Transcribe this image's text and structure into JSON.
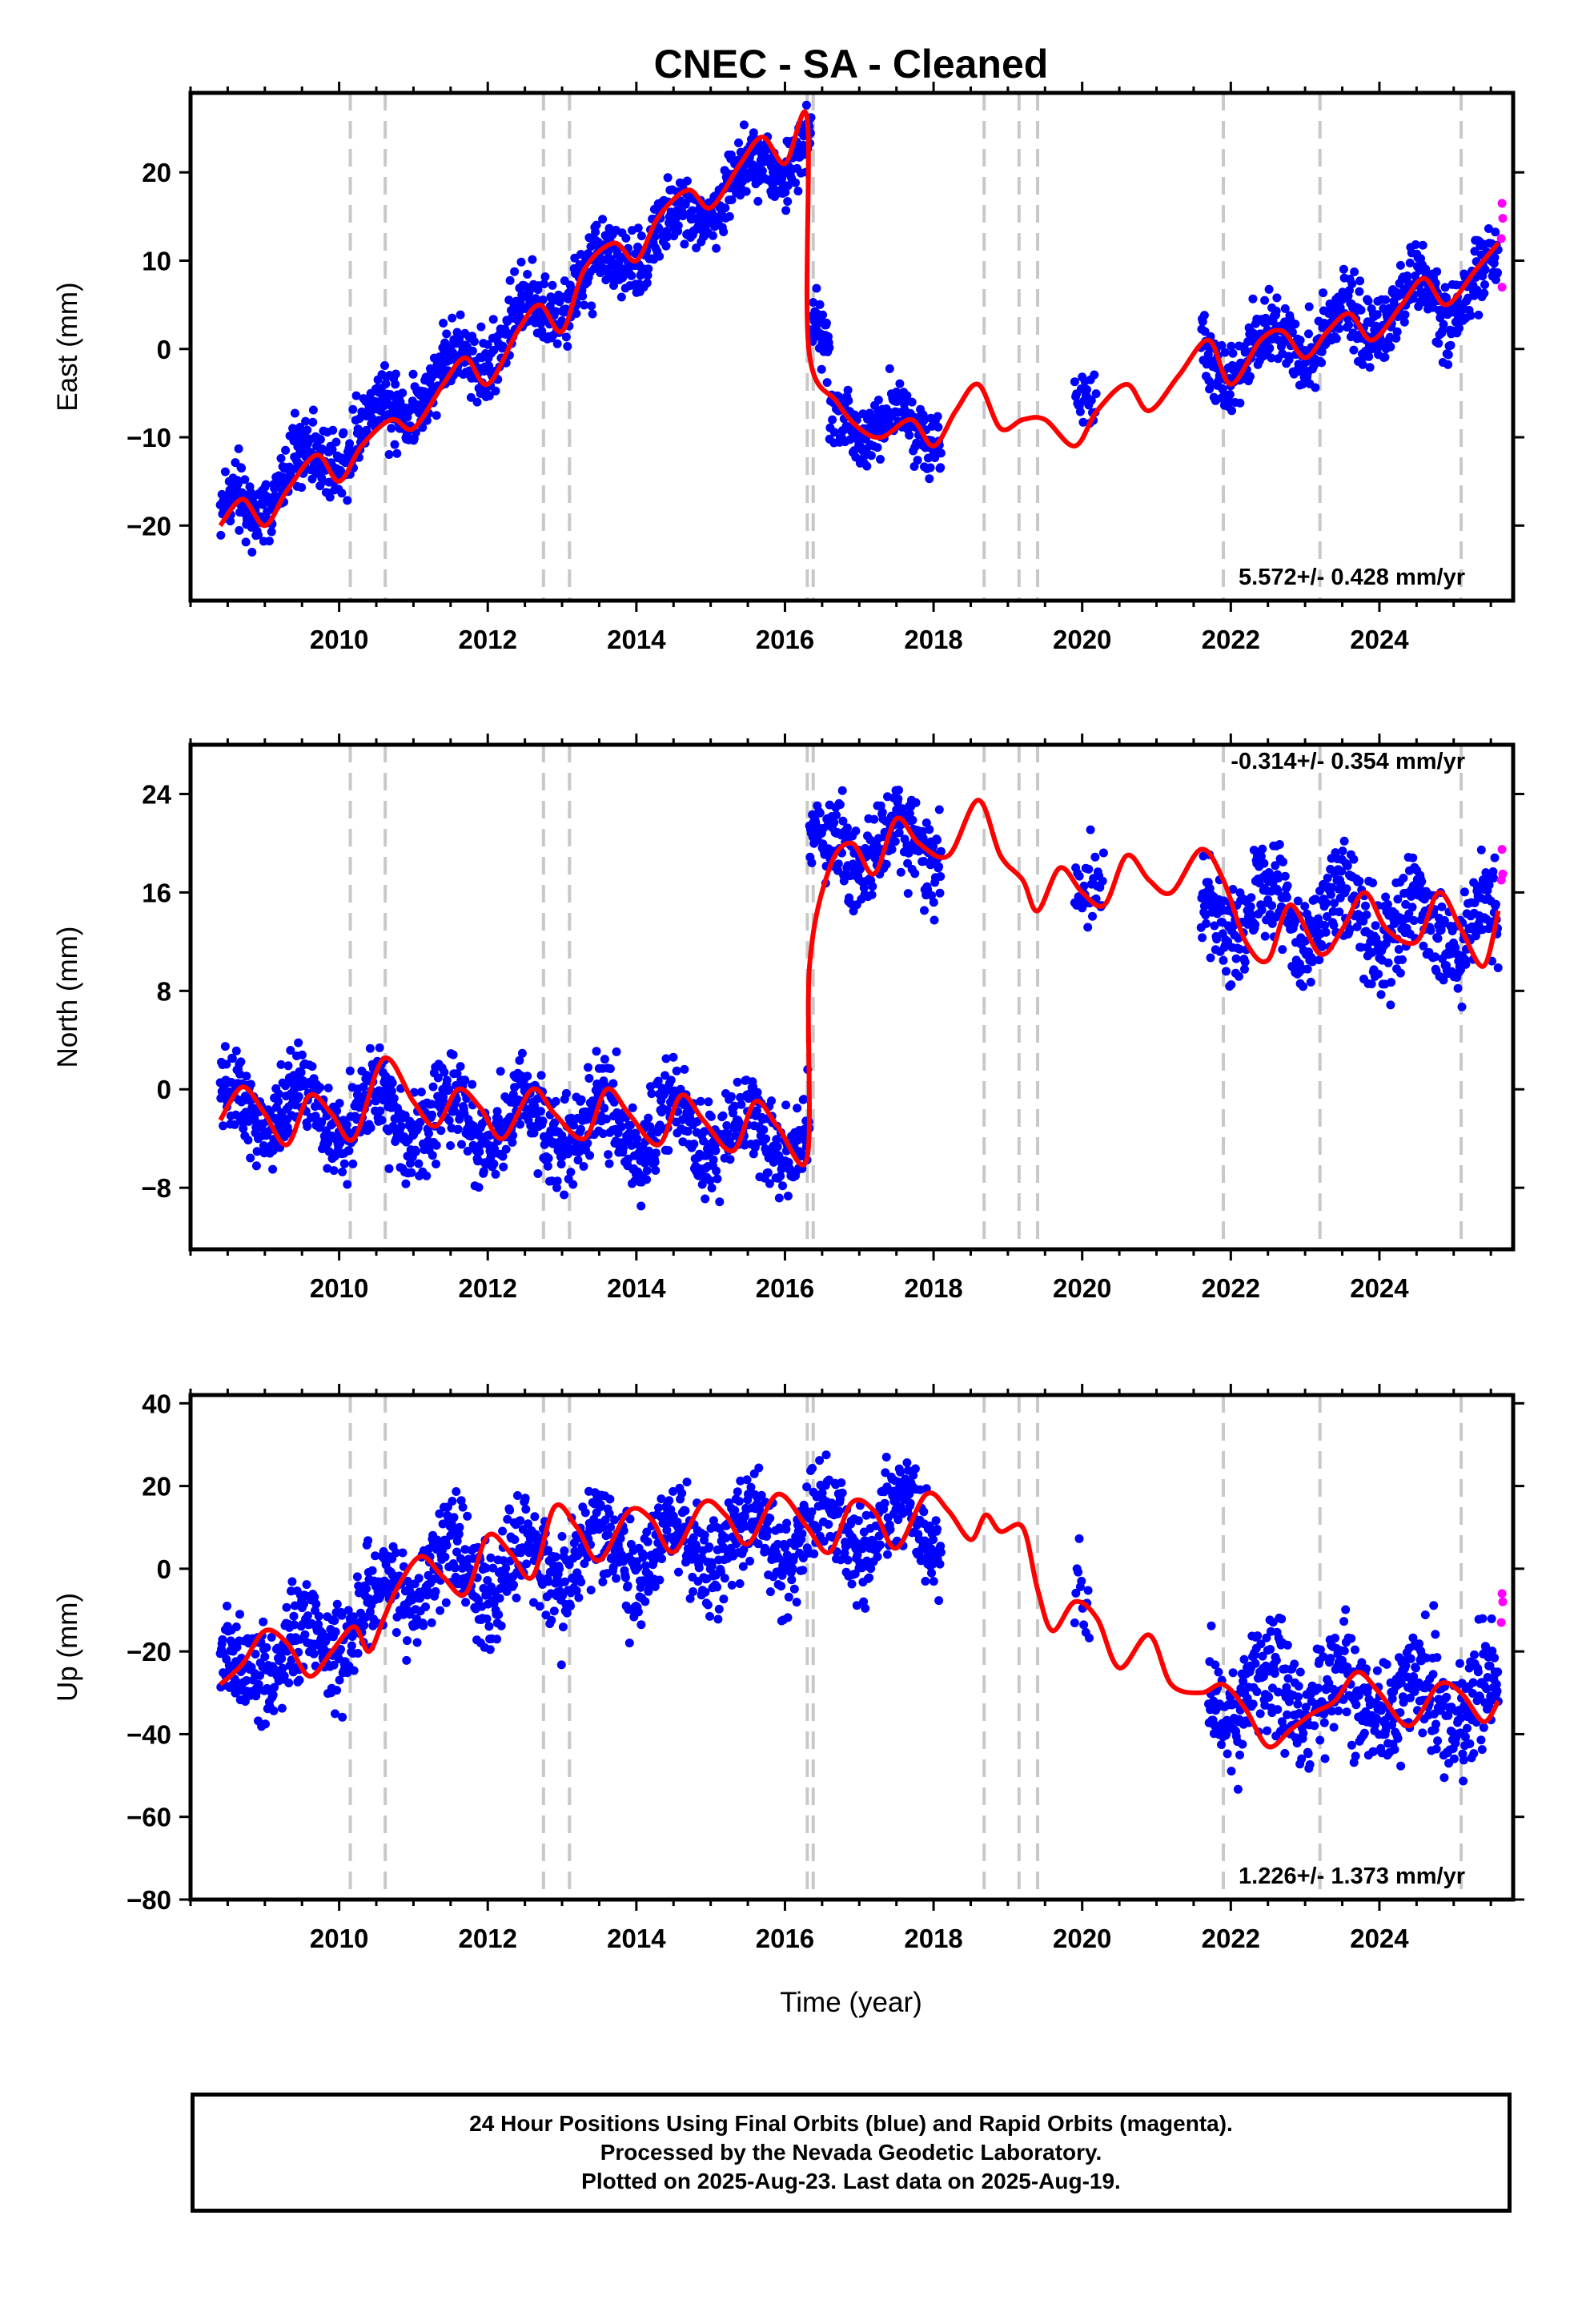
{
  "chart_data": [
    {
      "type": "scatter",
      "title": "CNEC  - SA - Cleaned",
      "xlabel": "",
      "ylabel": "East (mm)",
      "xlim": [
        2008.0,
        2025.8
      ],
      "ylim": [
        -28.5,
        29.0
      ],
      "x_ticks": [
        2010,
        2012,
        2014,
        2016,
        2018,
        2020,
        2022,
        2024
      ],
      "y_ticks": [
        -20,
        -10,
        0,
        10,
        20
      ],
      "rate_label": "5.572+/- 0.428 mm/yr",
      "event_lines": [
        2010.15,
        2010.62,
        2012.75,
        2013.1,
        2016.3,
        2016.38,
        2018.68,
        2019.15,
        2019.4,
        2021.9,
        2023.2,
        2025.1
      ],
      "segments": [
        {
          "start": 2008.4,
          "end": 2016.35,
          "y0": -19.5,
          "slope": 5.5,
          "amp": 2.2,
          "noise": 2.0,
          "density": 1.0,
          "y_end": 25.0
        },
        {
          "start": 2016.35,
          "end": 2016.6,
          "y0": 4.0,
          "slope": -20.0,
          "amp": 0.5,
          "noise": 2.0,
          "density": 1.0
        },
        {
          "start": 2016.6,
          "end": 2018.1,
          "y0": -7.5,
          "slope": -1.0,
          "amp": 2.0,
          "noise": 1.8,
          "density": 1.0
        },
        {
          "start": 2019.9,
          "end": 2020.2,
          "y0": -5.5,
          "slope": 0.0,
          "amp": 1.0,
          "noise": 1.8,
          "density": 0.6
        },
        {
          "start": 2021.6,
          "end": 2025.6,
          "y0": -2.0,
          "slope": 2.4,
          "amp": 2.8,
          "noise": 2.1,
          "density": 1.0
        }
      ],
      "model_knots": [
        [
          2008.4,
          -20
        ],
        [
          2008.7,
          -17
        ],
        [
          2009.0,
          -20
        ],
        [
          2009.3,
          -16
        ],
        [
          2009.7,
          -12
        ],
        [
          2010.0,
          -15
        ],
        [
          2010.3,
          -11
        ],
        [
          2010.7,
          -8
        ],
        [
          2011.0,
          -9
        ],
        [
          2011.4,
          -4
        ],
        [
          2011.7,
          -1
        ],
        [
          2012.0,
          -4
        ],
        [
          2012.4,
          2
        ],
        [
          2012.7,
          5
        ],
        [
          2013.0,
          2
        ],
        [
          2013.3,
          9
        ],
        [
          2013.7,
          12
        ],
        [
          2014.0,
          10
        ],
        [
          2014.3,
          15
        ],
        [
          2014.7,
          18
        ],
        [
          2015.0,
          16
        ],
        [
          2015.4,
          21
        ],
        [
          2015.7,
          24
        ],
        [
          2016.0,
          21
        ],
        [
          2016.3,
          26
        ],
        [
          2016.32,
          0
        ],
        [
          2016.7,
          -6
        ],
        [
          2017.0,
          -9
        ],
        [
          2017.3,
          -10
        ],
        [
          2017.7,
          -8
        ],
        [
          2018.0,
          -11
        ],
        [
          2018.3,
          -7
        ],
        [
          2018.6,
          -4
        ],
        [
          2018.9,
          -9
        ],
        [
          2019.2,
          -8
        ],
        [
          2019.5,
          -8
        ],
        [
          2019.9,
          -11
        ],
        [
          2020.2,
          -7
        ],
        [
          2020.6,
          -4
        ],
        [
          2020.9,
          -7
        ],
        [
          2021.3,
          -3
        ],
        [
          2021.7,
          1
        ],
        [
          2022.0,
          -4
        ],
        [
          2022.4,
          1
        ],
        [
          2022.7,
          2
        ],
        [
          2023.0,
          -1
        ],
        [
          2023.3,
          2
        ],
        [
          2023.6,
          4
        ],
        [
          2023.9,
          1
        ],
        [
          2024.3,
          5
        ],
        [
          2024.6,
          8
        ],
        [
          2024.9,
          5
        ],
        [
          2025.3,
          9
        ],
        [
          2025.6,
          12
        ]
      ],
      "rapid_points": [
        [
          2025.65,
          16.5
        ],
        [
          2025.66,
          14.8
        ],
        [
          2025.64,
          12.5
        ],
        [
          2025.65,
          7.0
        ]
      ]
    },
    {
      "type": "scatter",
      "xlabel": "",
      "ylabel": "North (mm)",
      "xlim": [
        2008.0,
        2025.8
      ],
      "ylim": [
        -13.0,
        28.0
      ],
      "x_ticks": [
        2010,
        2012,
        2014,
        2016,
        2018,
        2020,
        2022,
        2024
      ],
      "y_ticks": [
        -8,
        0,
        8,
        16,
        24
      ],
      "rate_label": "-0.314+/- 0.354 mm/yr",
      "event_lines": [
        2010.15,
        2010.62,
        2012.75,
        2013.1,
        2016.3,
        2016.38,
        2018.68,
        2019.15,
        2019.4,
        2021.9,
        2023.2,
        2025.1
      ],
      "segments": [
        {
          "start": 2008.4,
          "end": 2016.33,
          "y0": -1.5,
          "slope": -0.3,
          "amp": 2.0,
          "noise": 1.8,
          "density": 1.0
        },
        {
          "start": 2016.33,
          "end": 2018.1,
          "y0": 19.5,
          "slope": 0.5,
          "amp": 1.8,
          "noise": 1.8,
          "density": 1.0
        },
        {
          "start": 2019.9,
          "end": 2020.3,
          "y0": 17.5,
          "slope": 0.0,
          "amp": 1.5,
          "noise": 1.8,
          "density": 0.6
        },
        {
          "start": 2021.6,
          "end": 2025.6,
          "y0": 15.0,
          "slope": -0.6,
          "amp": 2.5,
          "noise": 2.0,
          "density": 1.0
        }
      ],
      "model_knots": [
        [
          2008.4,
          -2.5
        ],
        [
          2008.7,
          0.2
        ],
        [
          2009.0,
          -2
        ],
        [
          2009.3,
          -4.5
        ],
        [
          2009.6,
          -0.5
        ],
        [
          2009.9,
          -2
        ],
        [
          2010.2,
          -4
        ],
        [
          2010.6,
          2.5
        ],
        [
          2011.0,
          -1
        ],
        [
          2011.3,
          -3
        ],
        [
          2011.6,
          0
        ],
        [
          2011.9,
          -1.5
        ],
        [
          2012.2,
          -4
        ],
        [
          2012.6,
          0
        ],
        [
          2012.9,
          -2
        ],
        [
          2013.3,
          -4
        ],
        [
          2013.6,
          0
        ],
        [
          2013.9,
          -2
        ],
        [
          2014.3,
          -4.5
        ],
        [
          2014.6,
          -0.5
        ],
        [
          2014.9,
          -2.5
        ],
        [
          2015.3,
          -5
        ],
        [
          2015.6,
          -1
        ],
        [
          2015.9,
          -3
        ],
        [
          2016.3,
          -5.5
        ],
        [
          2016.33,
          10
        ],
        [
          2016.6,
          18
        ],
        [
          2016.9,
          20
        ],
        [
          2017.2,
          17.5
        ],
        [
          2017.5,
          22
        ],
        [
          2017.8,
          20
        ],
        [
          2018.2,
          19
        ],
        [
          2018.6,
          23.5
        ],
        [
          2018.9,
          19
        ],
        [
          2019.2,
          17
        ],
        [
          2019.4,
          14.5
        ],
        [
          2019.7,
          18
        ],
        [
          2020.0,
          16
        ],
        [
          2020.3,
          15
        ],
        [
          2020.6,
          19
        ],
        [
          2020.9,
          17
        ],
        [
          2021.2,
          16
        ],
        [
          2021.6,
          19.5
        ],
        [
          2021.9,
          17
        ],
        [
          2022.2,
          12
        ],
        [
          2022.5,
          10.5
        ],
        [
          2022.8,
          15
        ],
        [
          2023.2,
          11
        ],
        [
          2023.5,
          13
        ],
        [
          2023.8,
          16
        ],
        [
          2024.1,
          13
        ],
        [
          2024.5,
          12
        ],
        [
          2024.8,
          16
        ],
        [
          2025.1,
          13
        ],
        [
          2025.4,
          10
        ],
        [
          2025.6,
          14.5
        ]
      ],
      "rapid_points": [
        [
          2025.65,
          19.5
        ],
        [
          2025.66,
          17.5
        ],
        [
          2025.64,
          17.0
        ]
      ]
    },
    {
      "type": "scatter",
      "xlabel": "Time (year)",
      "ylabel": "Up (mm)",
      "xlim": [
        2008.0,
        2025.8
      ],
      "ylim": [
        -80.0,
        42.0
      ],
      "x_ticks": [
        2010,
        2012,
        2014,
        2016,
        2018,
        2020,
        2022,
        2024
      ],
      "y_ticks": [
        -80,
        -60,
        -40,
        -20,
        0,
        20,
        40
      ],
      "rate_label": "1.226+/- 1.373 mm/yr",
      "event_lines": [
        2010.15,
        2010.62,
        2012.75,
        2013.1,
        2016.3,
        2016.38,
        2018.68,
        2019.15,
        2019.4,
        2021.9,
        2023.2,
        2025.1
      ],
      "segments": [
        {
          "start": 2008.4,
          "end": 2010.6,
          "y0": -28,
          "slope": 8.0,
          "amp": 6.0,
          "noise": 6.0,
          "density": 1.0
        },
        {
          "start": 2010.6,
          "end": 2018.1,
          "y0": -3,
          "slope": 2.0,
          "amp": 7.0,
          "noise": 6.0,
          "density": 1.0
        },
        {
          "start": 2019.9,
          "end": 2020.1,
          "y0": -2,
          "slope": 0.0,
          "amp": 2.0,
          "noise": 8.0,
          "density": 0.5
        },
        {
          "start": 2021.7,
          "end": 2025.6,
          "y0": -30,
          "slope": -0.5,
          "amp": 6.0,
          "noise": 7.0,
          "density": 1.0
        }
      ],
      "model_knots": [
        [
          2008.4,
          -28
        ],
        [
          2008.7,
          -23
        ],
        [
          2009.0,
          -15
        ],
        [
          2009.3,
          -18
        ],
        [
          2009.6,
          -26
        ],
        [
          2009.9,
          -20
        ],
        [
          2010.2,
          -14
        ],
        [
          2010.4,
          -20
        ],
        [
          2010.6,
          -12
        ],
        [
          2010.8,
          -4
        ],
        [
          2011.1,
          3
        ],
        [
          2011.4,
          -2
        ],
        [
          2011.7,
          -6
        ],
        [
          2012.0,
          8
        ],
        [
          2012.3,
          4
        ],
        [
          2012.6,
          -2
        ],
        [
          2012.9,
          15
        ],
        [
          2013.2,
          10
        ],
        [
          2013.5,
          2
        ],
        [
          2013.9,
          14
        ],
        [
          2014.2,
          12
        ],
        [
          2014.5,
          4
        ],
        [
          2014.9,
          16
        ],
        [
          2015.2,
          13
        ],
        [
          2015.5,
          6
        ],
        [
          2015.9,
          18
        ],
        [
          2016.3,
          10
        ],
        [
          2016.6,
          4
        ],
        [
          2016.9,
          16
        ],
        [
          2017.2,
          14
        ],
        [
          2017.5,
          5
        ],
        [
          2017.9,
          18
        ],
        [
          2018.2,
          14
        ],
        [
          2018.5,
          7
        ],
        [
          2018.7,
          13
        ],
        [
          2018.9,
          9
        ],
        [
          2019.2,
          10
        ],
        [
          2019.4,
          -5
        ],
        [
          2019.6,
          -15
        ],
        [
          2019.9,
          -8
        ],
        [
          2020.2,
          -12
        ],
        [
          2020.5,
          -24
        ],
        [
          2020.9,
          -16
        ],
        [
          2021.2,
          -28
        ],
        [
          2021.6,
          -30
        ],
        [
          2021.9,
          -28
        ],
        [
          2022.2,
          -34
        ],
        [
          2022.5,
          -43
        ],
        [
          2022.8,
          -39
        ],
        [
          2023.1,
          -35
        ],
        [
          2023.4,
          -32
        ],
        [
          2023.7,
          -25
        ],
        [
          2024.0,
          -30
        ],
        [
          2024.4,
          -38
        ],
        [
          2024.8,
          -28
        ],
        [
          2025.1,
          -30
        ],
        [
          2025.4,
          -37
        ],
        [
          2025.6,
          -32
        ]
      ],
      "rapid_points": [
        [
          2025.65,
          -6
        ],
        [
          2025.66,
          -8
        ],
        [
          2025.64,
          -13
        ]
      ]
    }
  ],
  "footer": {
    "line1": "24 Hour Positions Using Final Orbits (blue) and Rapid Orbits (magenta).",
    "line2": "Processed by the Nevada Geodetic Laboratory.",
    "line3": "Plotted on 2025-Aug-23. Last data on 2025-Aug-19."
  },
  "colors": {
    "final_orbits": "#0000ff",
    "rapid_orbits": "#ff00ff",
    "model": "#ff0000",
    "event_lines": "#c8c8c8"
  }
}
